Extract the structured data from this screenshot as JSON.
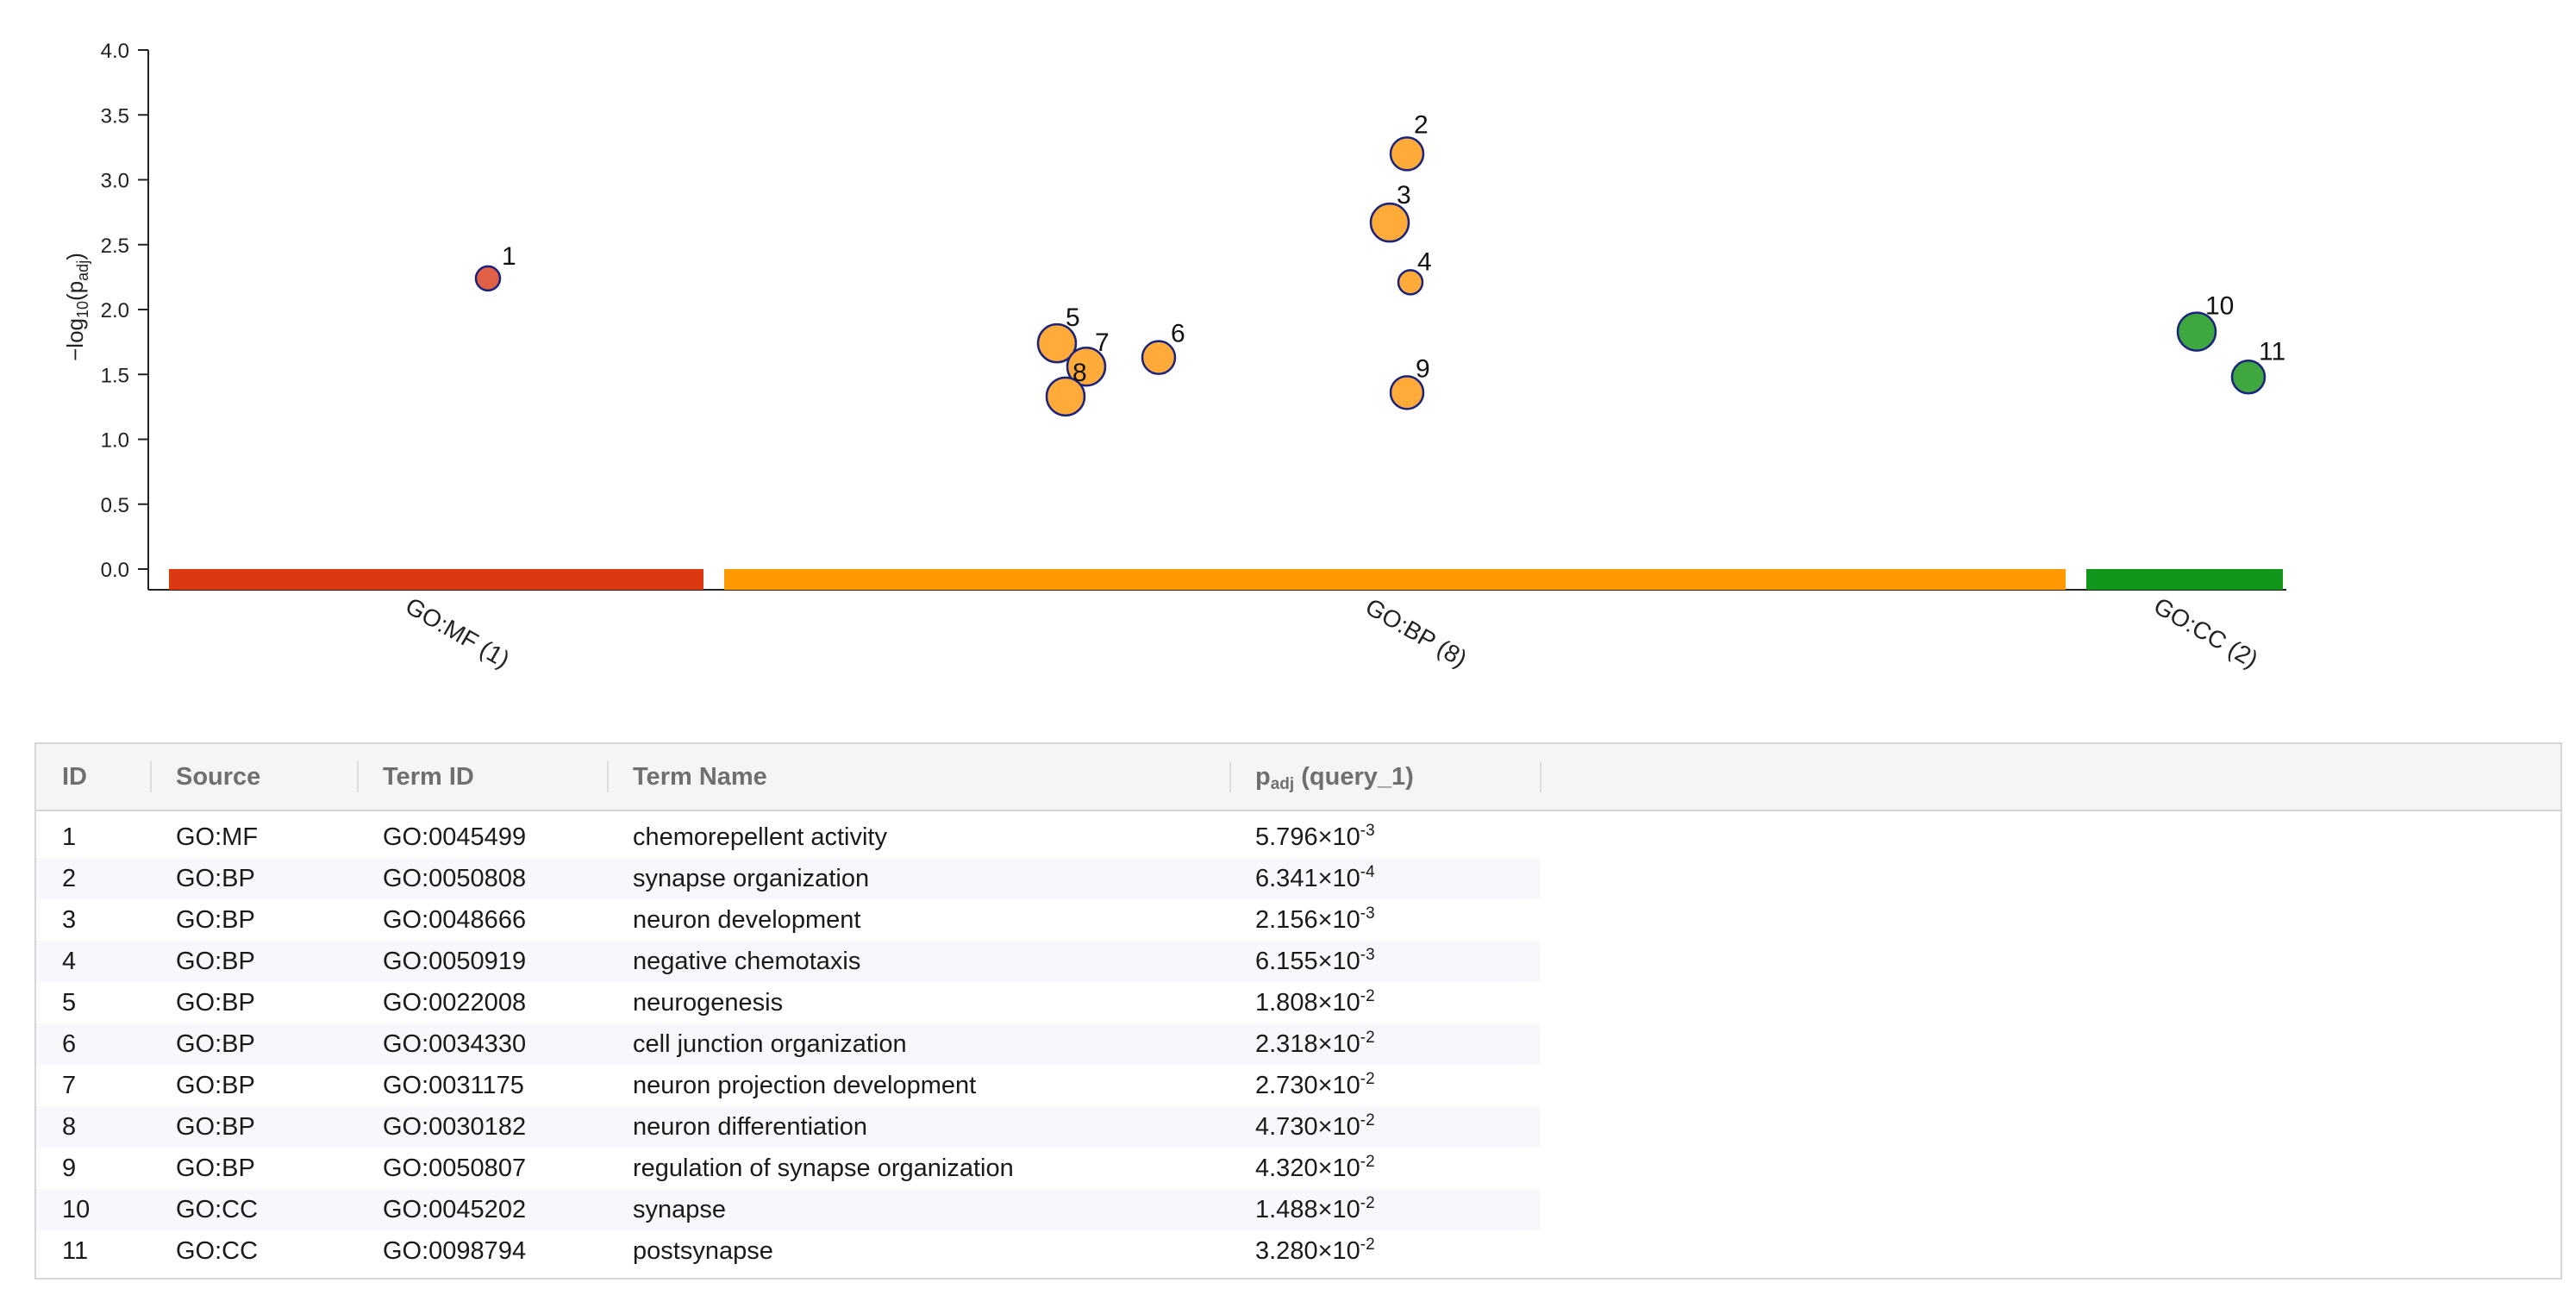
{
  "chart_data": {
    "type": "scatter",
    "ylabel": "−log₁₀(p_adj)",
    "ylim": [
      0,
      4
    ],
    "yticks": [
      "0.0",
      "0.5",
      "1.0",
      "1.5",
      "2.0",
      "2.5",
      "3.0",
      "3.5",
      "4.0"
    ],
    "grid": false,
    "categories": [
      {
        "label": "GO:MF (1)",
        "source": "GO:MF",
        "color": "#dc3912"
      },
      {
        "label": "GO:BP (8)",
        "source": "GO:BP",
        "color": "#ff9900"
      },
      {
        "label": "GO:CC (2)",
        "source": "GO:CC",
        "color": "#109618"
      }
    ],
    "point_colors": {
      "GO:MF": "#e06046",
      "GO:BP": "#ffab3a",
      "GO:CC": "#3ea73e"
    },
    "points": [
      {
        "id": "1",
        "source": "GO:MF",
        "y": 2.24,
        "size": "small"
      },
      {
        "id": "2",
        "source": "GO:BP",
        "y": 3.2,
        "size": "medium"
      },
      {
        "id": "3",
        "source": "GO:BP",
        "y": 2.67,
        "size": "large"
      },
      {
        "id": "4",
        "source": "GO:BP",
        "y": 2.21,
        "size": "small"
      },
      {
        "id": "5",
        "source": "GO:BP",
        "y": 1.74,
        "size": "large"
      },
      {
        "id": "6",
        "source": "GO:BP",
        "y": 1.63,
        "size": "medium"
      },
      {
        "id": "7",
        "source": "GO:BP",
        "y": 1.56,
        "size": "large"
      },
      {
        "id": "8",
        "source": "GO:BP",
        "y": 1.33,
        "size": "large"
      },
      {
        "id": "9",
        "source": "GO:BP",
        "y": 1.36,
        "size": "medium"
      },
      {
        "id": "10",
        "source": "GO:CC",
        "y": 1.83,
        "size": "large"
      },
      {
        "id": "11",
        "source": "GO:CC",
        "y": 1.48,
        "size": "medium"
      }
    ]
  },
  "table": {
    "headers": {
      "id": "ID",
      "source": "Source",
      "term_id": "Term ID",
      "term_name": "Term Name",
      "padj": "p",
      "padj_sub": "adj",
      "padj_suffix": " (query_1)"
    },
    "rows": [
      {
        "id": "1",
        "source": "GO:MF",
        "term_id": "GO:0045499",
        "term_name": "chemorepellent activity",
        "padj_mant": "5.796×10",
        "padj_exp": "-3"
      },
      {
        "id": "2",
        "source": "GO:BP",
        "term_id": "GO:0050808",
        "term_name": "synapse organization",
        "padj_mant": "6.341×10",
        "padj_exp": "-4"
      },
      {
        "id": "3",
        "source": "GO:BP",
        "term_id": "GO:0048666",
        "term_name": "neuron development",
        "padj_mant": "2.156×10",
        "padj_exp": "-3"
      },
      {
        "id": "4",
        "source": "GO:BP",
        "term_id": "GO:0050919",
        "term_name": "negative chemotaxis",
        "padj_mant": "6.155×10",
        "padj_exp": "-3"
      },
      {
        "id": "5",
        "source": "GO:BP",
        "term_id": "GO:0022008",
        "term_name": "neurogenesis",
        "padj_mant": "1.808×10",
        "padj_exp": "-2"
      },
      {
        "id": "6",
        "source": "GO:BP",
        "term_id": "GO:0034330",
        "term_name": "cell junction organization",
        "padj_mant": "2.318×10",
        "padj_exp": "-2"
      },
      {
        "id": "7",
        "source": "GO:BP",
        "term_id": "GO:0031175",
        "term_name": "neuron projection development",
        "padj_mant": "2.730×10",
        "padj_exp": "-2"
      },
      {
        "id": "8",
        "source": "GO:BP",
        "term_id": "GO:0030182",
        "term_name": "neuron differentiation",
        "padj_mant": "4.730×10",
        "padj_exp": "-2"
      },
      {
        "id": "9",
        "source": "GO:BP",
        "term_id": "GO:0050807",
        "term_name": "regulation of synapse organization",
        "padj_mant": "4.320×10",
        "padj_exp": "-2"
      },
      {
        "id": "10",
        "source": "GO:CC",
        "term_id": "GO:0045202",
        "term_name": "synapse",
        "padj_mant": "1.488×10",
        "padj_exp": "-2"
      },
      {
        "id": "11",
        "source": "GO:CC",
        "term_id": "GO:0098794",
        "term_name": "postsynapse",
        "padj_mant": "3.280×10",
        "padj_exp": "-2"
      }
    ]
  }
}
